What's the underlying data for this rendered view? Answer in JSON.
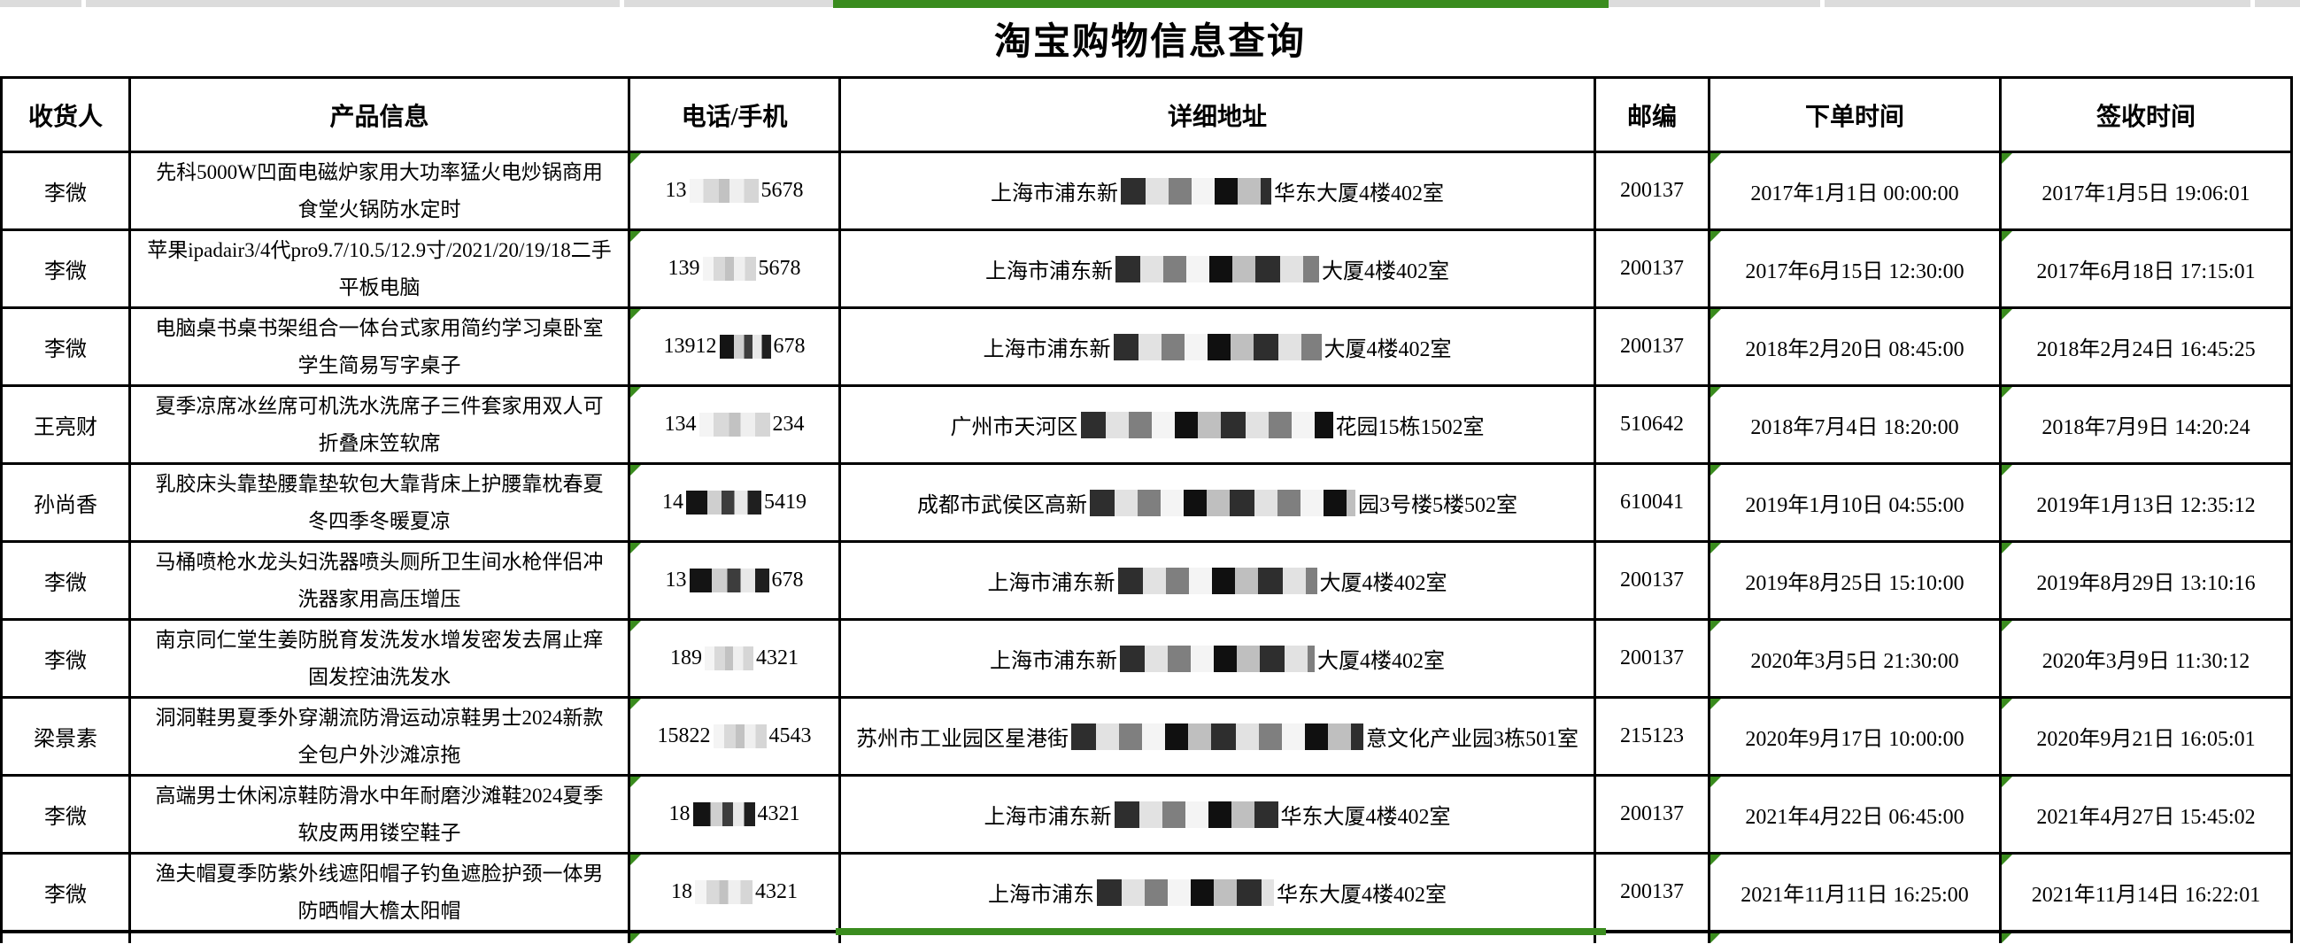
{
  "colors": {
    "selection_green": "#3a8c1e",
    "strip_gray": "#dcdcdc",
    "grid": "#000000"
  },
  "title": "淘宝购物信息查询",
  "table": {
    "headers": [
      "收货人",
      "产品信息",
      "电话/手机",
      "详细地址",
      "邮编",
      "下单时间",
      "签收时间"
    ],
    "rows": [
      {
        "recipient": "李微",
        "product": "先科5000W凹面电磁炉家用大功率猛火电炒锅商用食堂火锅防水定时",
        "phone": {
          "prefix": "13",
          "suffix": "5678",
          "mask": "light",
          "mask_w": 78
        },
        "address": {
          "prefix": "上海市浦东新",
          "suffix": "华东大厦4楼402室",
          "mask": "mix",
          "mask_w": 170
        },
        "zip": "200137",
        "order_time": "2017年1月1日 00:00:00",
        "sign_time": "2017年1月5日 19:06:01"
      },
      {
        "recipient": "李微",
        "product": "苹果ipadair3/4代pro9.7/10.5/12.9寸/2021/20/19/18二手平板电脑",
        "phone": {
          "prefix": "139",
          "suffix": "5678",
          "mask": "light",
          "mask_w": 60
        },
        "address": {
          "prefix": "上海市浦东新",
          "suffix": "大厦4楼402室",
          "mask": "mix",
          "mask_w": 230
        },
        "zip": "200137",
        "order_time": "2017年6月15日 12:30:00",
        "sign_time": "2017年6月18日 17:15:01"
      },
      {
        "recipient": "李微",
        "product": "电脑桌书桌书架组合一体台式家用简约学习桌卧室学生简易写字桌子",
        "phone": {
          "prefix": "13912",
          "suffix": "678",
          "mask": "dark",
          "mask_w": 58
        },
        "address": {
          "prefix": "上海市浦东新",
          "suffix": "大厦4楼402室",
          "mask": "mix",
          "mask_w": 235
        },
        "zip": "200137",
        "order_time": "2018年2月20日 08:45:00",
        "sign_time": "2018年2月24日 16:45:25"
      },
      {
        "recipient": "王亮财",
        "product": "夏季凉席冰丝席可机洗水洗席子三件套家用双人可折叠床笠软席",
        "phone": {
          "prefix": "134",
          "suffix": "234",
          "mask": "light",
          "mask_w": 80
        },
        "address": {
          "prefix": "广州市天河区",
          "suffix": "花园15栋1502室",
          "mask": "mix",
          "mask_w": 285
        },
        "zip": "510642",
        "order_time": "2018年7月4日 18:20:00",
        "sign_time": "2018年7月9日 14:20:24"
      },
      {
        "recipient": "孙尚香",
        "product": "乳胶床头靠垫腰靠垫软包大靠背床上护腰靠枕春夏冬四季冬暖夏凉",
        "phone": {
          "prefix": "14",
          "suffix": "5419",
          "mask": "dark",
          "mask_w": 85
        },
        "address": {
          "prefix": "成都市武侯区高新",
          "suffix": "园3号楼5楼502室",
          "mask": "mix",
          "mask_w": 300
        },
        "zip": "610041",
        "order_time": "2019年1月10日 04:55:00",
        "sign_time": "2019年1月13日 12:35:12"
      },
      {
        "recipient": "李微",
        "product": "马桶喷枪水龙头妇洗器喷头厕所卫生间水枪伴侣冲洗器家用高压增压",
        "phone": {
          "prefix": "13",
          "suffix": "678",
          "mask": "dark",
          "mask_w": 90
        },
        "address": {
          "prefix": "上海市浦东新",
          "suffix": "大厦4楼402室",
          "mask": "mix",
          "mask_w": 225
        },
        "zip": "200137",
        "order_time": "2019年8月25日 15:10:00",
        "sign_time": "2019年8月29日 13:10:16"
      },
      {
        "recipient": "李微",
        "product": "南京同仁堂生姜防脱育发洗发水增发密发去屑止痒固发控油洗发水",
        "phone": {
          "prefix": "189",
          "suffix": "4321",
          "mask": "light",
          "mask_w": 55
        },
        "address": {
          "prefix": "上海市浦东新",
          "suffix": "大厦4楼402室",
          "mask": "mix",
          "mask_w": 220
        },
        "zip": "200137",
        "order_time": "2020年3月5日 21:30:00",
        "sign_time": "2020年3月9日 11:30:12"
      },
      {
        "recipient": "梁景素",
        "product": "洞洞鞋男夏季外穿潮流防滑运动凉鞋男士2024新款全包户外沙滩凉拖",
        "phone": {
          "prefix": "15822",
          "suffix": "4543",
          "mask": "light",
          "mask_w": 60
        },
        "address": {
          "prefix": "苏州市工业园区星港街",
          "suffix": "意文化产业园3栋501室",
          "mask": "mix",
          "mask_w": 330
        },
        "zip": "215123",
        "order_time": "2020年9月17日 10:00:00",
        "sign_time": "2020年9月21日 16:05:01"
      },
      {
        "recipient": "李微",
        "product": "高端男士休闲凉鞋防滑水中年耐磨沙滩鞋2024夏季软皮两用镂空鞋子",
        "phone": {
          "prefix": "18",
          "suffix": "4321",
          "mask": "dark",
          "mask_w": 70
        },
        "address": {
          "prefix": "上海市浦东新",
          "suffix": "华东大厦4楼402室",
          "mask": "mix",
          "mask_w": 185
        },
        "zip": "200137",
        "order_time": "2021年4月22日 06:45:00",
        "sign_time": "2021年4月27日 15:45:02"
      },
      {
        "recipient": "李微",
        "product": "渔夫帽夏季防紫外线遮阳帽子钓鱼遮脸护颈一体男防晒帽大檐太阳帽",
        "phone": {
          "prefix": "18",
          "suffix": "4321",
          "mask": "light",
          "mask_w": 65
        },
        "address": {
          "prefix": "上海市浦东",
          "suffix": "华东大厦4楼402室",
          "mask": "mix",
          "mask_w": 200
        },
        "zip": "200137",
        "order_time": "2021年11月11日 16:25:00",
        "sign_time": "2021年11月14日 16:22:01"
      }
    ]
  }
}
